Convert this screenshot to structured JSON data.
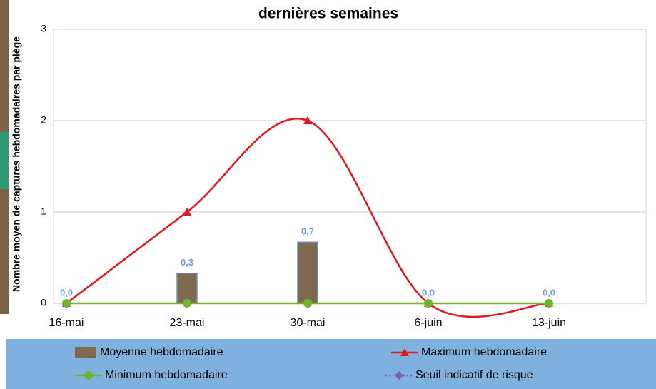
{
  "chart_data": {
    "type": "bar",
    "title": "dernières semaines",
    "y_label": "Nombre moyen de captures hebdomadaires par piège",
    "categories": [
      "16-mai",
      "23-mai",
      "30-mai",
      "6-juin",
      "13-juin"
    ],
    "ylim": [
      0,
      3
    ],
    "yticks": [
      0,
      1,
      2,
      3
    ],
    "grid": true,
    "series": [
      {
        "name": "Moyenne hebdomadaire",
        "type": "bar",
        "color": "#7f6a50",
        "values": [
          0,
          0.33,
          0.67,
          0,
          0
        ],
        "value_labels": [
          "0,0",
          "0,3",
          "0,7",
          "0,0",
          "0,0"
        ]
      },
      {
        "name": "Maximum hebdomadaire",
        "type": "line",
        "color": "#e8141b",
        "marker": "triangle",
        "smooth": true,
        "values": [
          0,
          1,
          2,
          0,
          0
        ]
      },
      {
        "name": "Minimum hebdomadaire",
        "type": "line",
        "color": "#6cb52d",
        "marker": "circle",
        "values": [
          0,
          0,
          0,
          0,
          0
        ]
      },
      {
        "name": "Seuil indicatif de risque",
        "type": "line",
        "color": "#7b5fb0",
        "marker": "diamond",
        "dash": true,
        "values": [
          null,
          null,
          null,
          null,
          null
        ]
      }
    ]
  }
}
